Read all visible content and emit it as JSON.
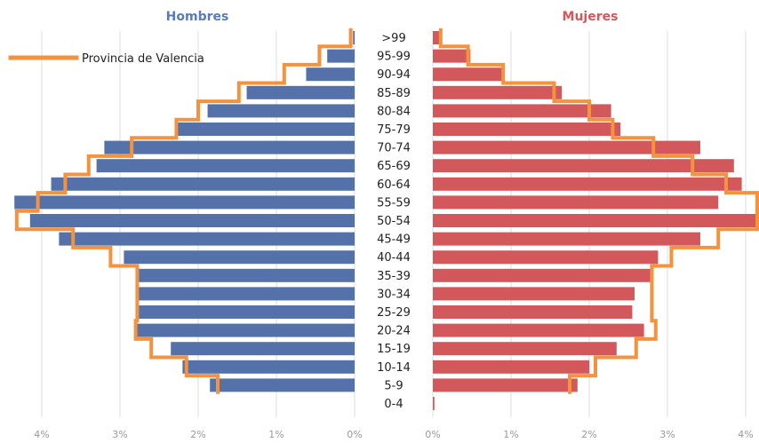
{
  "colors": {
    "men_bar": "#5471a9",
    "women_bar": "#d2585b",
    "province_line": "#f5923e",
    "men_title": "#5a7bb8",
    "women_title": "#d2585b",
    "grid": "#dcdcdc",
    "tick": "#9a9a9a"
  },
  "chart_data": {
    "type": "bar",
    "orientation": "horizontal",
    "subtype": "population-pyramid",
    "left_title": "Hombres",
    "right_title": "Mujeres",
    "legend": [
      {
        "label": "Provincia de Valencia",
        "type": "line",
        "position": "top-left"
      }
    ],
    "categories": [
      "0-4",
      "5-9",
      "10-14",
      "15-19",
      "20-24",
      "25-29",
      "30-34",
      "35-39",
      "40-44",
      "45-49",
      "50-54",
      "55-59",
      "60-64",
      "65-69",
      "70-74",
      "75-79",
      "80-84",
      "85-89",
      "90-94",
      "95-99",
      ">99"
    ],
    "men_ticks": [
      "4%",
      "3%",
      "2%",
      "1%",
      "0%"
    ],
    "women_ticks": [
      "0%",
      "1%",
      "2%",
      "3%",
      "4%"
    ],
    "x_range": [
      0,
      4.2
    ],
    "grid": true,
    "series": [
      {
        "name": "Hombres",
        "side": "left",
        "type": "bar",
        "values": [
          0.0,
          1.85,
          2.2,
          2.35,
          2.8,
          2.8,
          2.8,
          2.8,
          2.95,
          3.78,
          4.15,
          4.35,
          3.88,
          3.3,
          3.2,
          2.28,
          1.88,
          1.38,
          0.62,
          0.35,
          0.02
        ]
      },
      {
        "name": "Mujeres",
        "side": "right",
        "type": "bar",
        "values": [
          0.02,
          1.85,
          2.0,
          2.35,
          2.7,
          2.55,
          2.58,
          2.78,
          2.88,
          3.42,
          4.2,
          3.65,
          3.95,
          3.85,
          3.42,
          2.4,
          2.28,
          1.65,
          0.92,
          0.48,
          0.12
        ]
      },
      {
        "name": "Provincia de Valencia",
        "side": "left",
        "type": "step-line",
        "values": [
          null,
          1.75,
          2.15,
          2.6,
          2.8,
          2.78,
          2.78,
          2.78,
          3.12,
          3.6,
          4.32,
          4.05,
          3.7,
          3.4,
          2.85,
          2.28,
          2.0,
          1.48,
          0.9,
          0.45,
          0.05
        ]
      },
      {
        "name": "Provincia de Valencia",
        "side": "right",
        "type": "step-line",
        "values": [
          null,
          1.75,
          2.08,
          2.6,
          2.85,
          2.8,
          2.8,
          2.8,
          3.05,
          3.65,
          4.2,
          4.45,
          3.75,
          3.32,
          2.82,
          2.3,
          2.0,
          1.55,
          0.9,
          0.45,
          0.1
        ]
      }
    ]
  }
}
